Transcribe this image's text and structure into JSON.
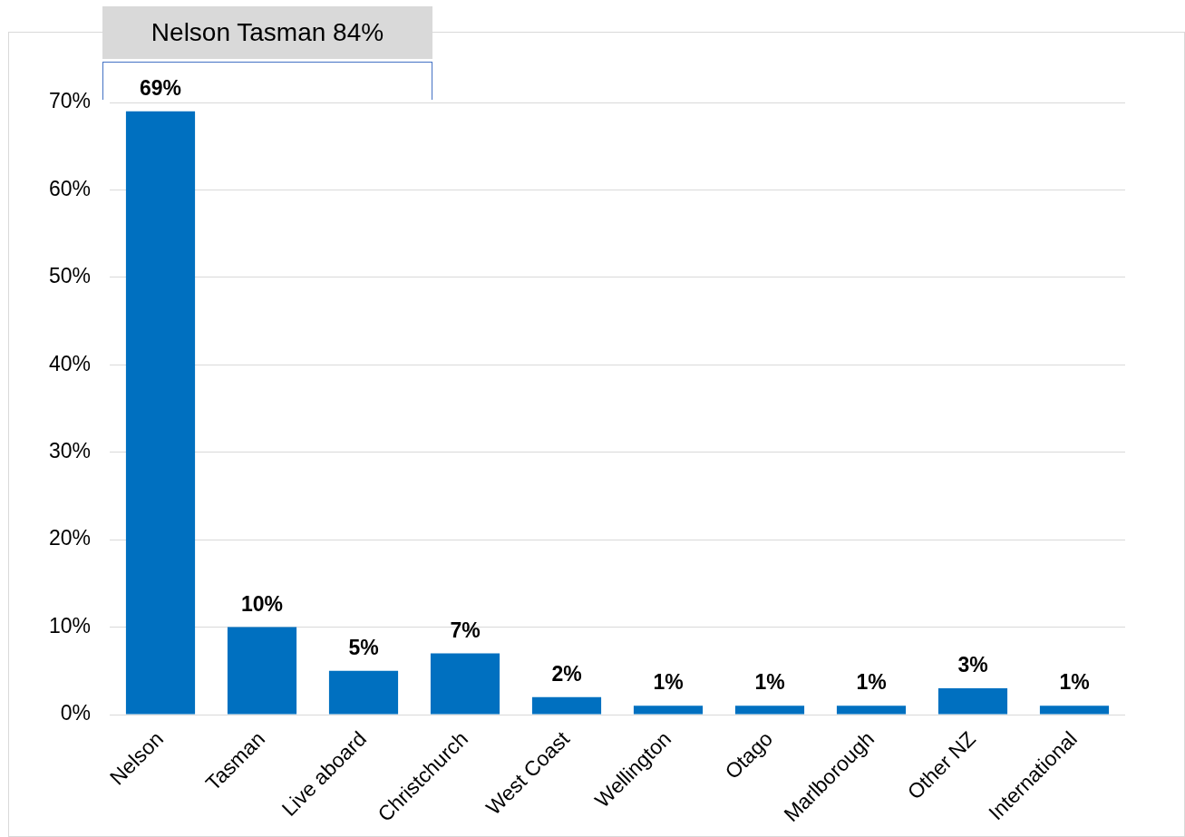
{
  "chart_data": {
    "type": "bar",
    "categories": [
      "Nelson",
      "Tasman",
      "Live aboard",
      "Christchurch",
      "West Coast",
      "Wellington",
      "Otago",
      "Marlborough",
      "Other NZ",
      "International"
    ],
    "values": [
      69,
      10,
      5,
      7,
      2,
      1,
      1,
      1,
      3,
      1
    ],
    "color": "#0070c0",
    "value_labels": [
      "69%",
      "10%",
      "5%",
      "7%",
      "2%",
      "1%",
      "1%",
      "1%",
      "3%",
      "1%"
    ],
    "ylim": [
      0,
      70
    ],
    "yticks": [
      {
        "value": 0,
        "label": "0%"
      },
      {
        "value": 10,
        "label": "10%"
      },
      {
        "value": 20,
        "label": "20%"
      },
      {
        "value": 30,
        "label": "30%"
      },
      {
        "value": 40,
        "label": "40%"
      },
      {
        "value": 50,
        "label": "50%"
      },
      {
        "value": 60,
        "label": "60%"
      },
      {
        "value": 70,
        "label": "70%"
      }
    ],
    "grid": "y",
    "legend": false,
    "annotations": [
      "Nelson Tasman 84%"
    ]
  }
}
